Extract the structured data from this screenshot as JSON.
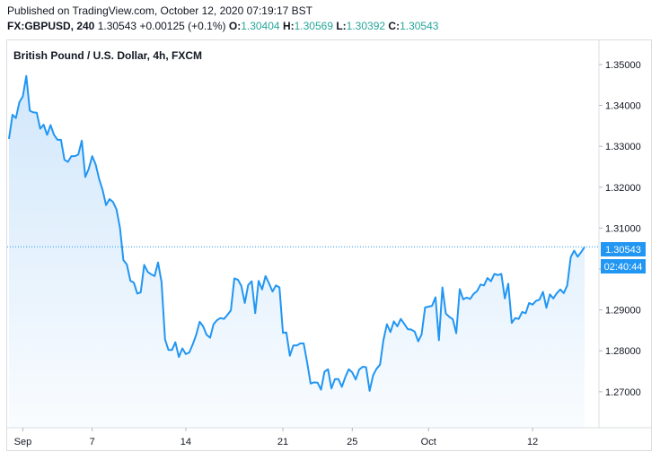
{
  "header": {
    "published": "Published on TradingView.com, October 12, 2020 07:19:17 BST",
    "symbol": "FX:GBPUSD, 240",
    "last": "1.30543",
    "change": "+0.00125 (+0.1%)",
    "o_label": "O:",
    "o_value": "1.30404",
    "h_label": "H:",
    "h_value": "1.30569",
    "l_label": "L:",
    "l_value": "1.30392",
    "c_label": "C:",
    "c_value": "1.30543"
  },
  "chart_data": {
    "type": "area",
    "title": "British Pound / U.S. Dollar, 4h, FXCM",
    "line_color": "#2196f3",
    "fill_color": "#cfe6fb",
    "price_label": "1.30543",
    "price_label_color": "#2196f3",
    "countdown_label": "02:40:44",
    "last_value": 1.30543,
    "ylim": [
      1.2612,
      1.3559
    ],
    "y_ticks": [
      "1.35000",
      "1.34000",
      "1.33000",
      "1.32000",
      "1.31000",
      "1.30000",
      "1.29000",
      "1.28000",
      "1.27000"
    ],
    "y_tick_values": [
      1.35,
      1.34,
      1.33,
      1.32,
      1.31,
      1.3,
      1.29,
      1.28,
      1.27
    ],
    "x_ticks": [
      "Sep",
      "7",
      "14",
      "21",
      "25",
      "Oct",
      "12"
    ],
    "x_tick_index": [
      4,
      24,
      51,
      79,
      99,
      121,
      151
    ],
    "values": [
      1.3318,
      1.3377,
      1.3369,
      1.3408,
      1.3422,
      1.3472,
      1.3387,
      1.3383,
      1.3382,
      1.3343,
      1.3353,
      1.3328,
      1.3352,
      1.3328,
      1.3316,
      1.3316,
      1.3267,
      1.3262,
      1.3276,
      1.3276,
      1.328,
      1.3314,
      1.3225,
      1.3245,
      1.3276,
      1.3256,
      1.322,
      1.3193,
      1.3156,
      1.3171,
      1.3164,
      1.3146,
      1.3101,
      1.3022,
      1.3011,
      1.2971,
      1.2967,
      1.294,
      1.2943,
      1.301,
      1.2993,
      1.2987,
      1.2983,
      1.3016,
      1.2968,
      1.2828,
      1.2802,
      1.2802,
      1.2821,
      1.2785,
      1.2806,
      1.2792,
      1.2796,
      1.2816,
      1.2839,
      1.2871,
      1.286,
      1.2839,
      1.2832,
      1.2865,
      1.2875,
      1.288,
      1.2878,
      1.2888,
      1.2899,
      1.2977,
      1.2974,
      1.2959,
      1.2917,
      1.2961,
      1.297,
      1.2892,
      1.2971,
      1.295,
      1.2983,
      1.2965,
      1.2945,
      1.296,
      1.2955,
      1.2844,
      1.2845,
      1.2788,
      1.2813,
      1.2813,
      1.2818,
      1.2818,
      1.2771,
      1.272,
      1.2723,
      1.2722,
      1.2705,
      1.2749,
      1.2755,
      1.2708,
      1.2731,
      1.2731,
      1.2712,
      1.2736,
      1.2755,
      1.2747,
      1.273,
      1.2754,
      1.2761,
      1.276,
      1.2702,
      1.274,
      1.2756,
      1.2766,
      1.2826,
      1.2865,
      1.2846,
      1.2872,
      1.286,
      1.2878,
      1.2866,
      1.2853,
      1.2852,
      1.2847,
      1.2823,
      1.284,
      1.2906,
      1.2908,
      1.291,
      1.2931,
      1.2826,
      1.2955,
      1.2891,
      1.2883,
      1.2877,
      1.2843,
      1.2951,
      1.2926,
      1.293,
      1.2927,
      1.2939,
      1.2946,
      1.2962,
      1.296,
      1.2978,
      1.297,
      1.2988,
      1.2985,
      1.2988,
      1.2928,
      1.2964,
      1.2868,
      1.288,
      1.2878,
      1.2895,
      1.2892,
      1.2917,
      1.2913,
      1.2922,
      1.2925,
      1.2944,
      1.2905,
      1.2938,
      1.2928,
      1.2941,
      1.295,
      1.2941,
      1.296,
      1.3029,
      1.3045,
      1.303,
      1.3041,
      1.3054
    ]
  }
}
